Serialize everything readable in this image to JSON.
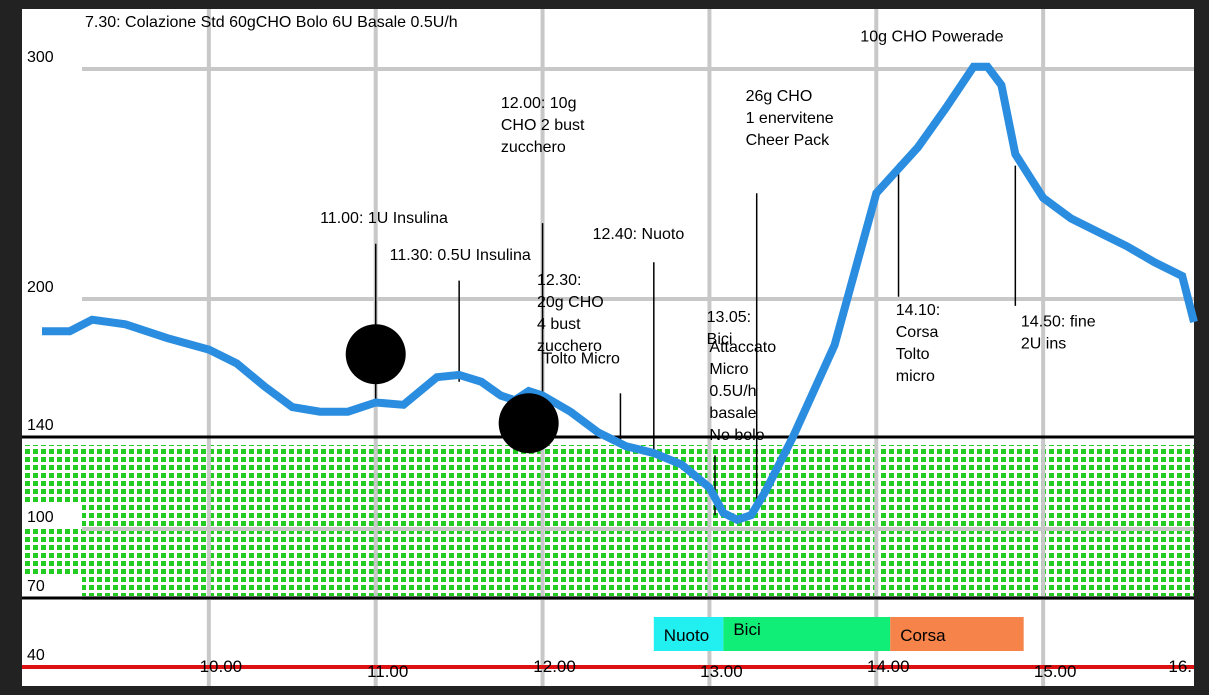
{
  "chart_data": {
    "type": "line",
    "title": "7.30: Colazione Std 60gCHO Bolo 6U Basale 0.5U/h",
    "xlabel": "",
    "ylabel": "",
    "xlim": [
      "09:00",
      "16:00"
    ],
    "ylim": [
      30,
      320
    ],
    "x_ticks": [
      {
        "label": "10.00",
        "time": "10:00"
      },
      {
        "label": "11.00",
        "time": "11:00"
      },
      {
        "label": "12.00",
        "time": "12:00"
      },
      {
        "label": "13.00",
        "time": "13:00"
      },
      {
        "label": "14.00",
        "time": "14:00"
      },
      {
        "label": "15.00",
        "time": "15:00"
      },
      {
        "label": "16.",
        "time": "16:00"
      }
    ],
    "y_ticks": [
      {
        "label": "300",
        "value": 300
      },
      {
        "label": "200",
        "value": 200
      },
      {
        "label": "140",
        "value": 140
      },
      {
        "label": "100",
        "value": 100
      },
      {
        "label": "70",
        "value": 70
      },
      {
        "label": "40",
        "value": 40
      }
    ],
    "grid": true,
    "target_range": {
      "low": 70,
      "high": 140,
      "color": "#22cc22"
    },
    "reference_lines": [
      {
        "value": 140,
        "color": "#000000"
      },
      {
        "value": 70,
        "color": "#000000"
      },
      {
        "value": 40,
        "color": "#dd1111"
      }
    ],
    "series": [
      {
        "color": "#2a8de0",
        "points": [
          {
            "x": "09:00",
            "y": 186
          },
          {
            "x": "09:10",
            "y": 186
          },
          {
            "x": "09:18",
            "y": 191
          },
          {
            "x": "09:30",
            "y": 189
          },
          {
            "x": "09:45",
            "y": 183
          },
          {
            "x": "10:00",
            "y": 178
          },
          {
            "x": "10:10",
            "y": 172
          },
          {
            "x": "10:20",
            "y": 162
          },
          {
            "x": "10:30",
            "y": 153
          },
          {
            "x": "10:40",
            "y": 151
          },
          {
            "x": "10:50",
            "y": 151
          },
          {
            "x": "11:00",
            "y": 155
          },
          {
            "x": "11:10",
            "y": 154
          },
          {
            "x": "11:15",
            "y": 159
          },
          {
            "x": "11:22",
            "y": 166
          },
          {
            "x": "11:30",
            "y": 167
          },
          {
            "x": "11:38",
            "y": 164
          },
          {
            "x": "11:45",
            "y": 158
          },
          {
            "x": "11:50",
            "y": 156
          },
          {
            "x": "11:55",
            "y": 160
          },
          {
            "x": "12:00",
            "y": 158
          },
          {
            "x": "12:10",
            "y": 151
          },
          {
            "x": "12:20",
            "y": 142
          },
          {
            "x": "12:30",
            "y": 136
          },
          {
            "x": "12:40",
            "y": 133
          },
          {
            "x": "12:50",
            "y": 128
          },
          {
            "x": "13:00",
            "y": 118
          },
          {
            "x": "13:05",
            "y": 107
          },
          {
            "x": "13:10",
            "y": 104
          },
          {
            "x": "13:15",
            "y": 106
          },
          {
            "x": "13:20",
            "y": 116
          },
          {
            "x": "13:30",
            "y": 140
          },
          {
            "x": "13:45",
            "y": 180
          },
          {
            "x": "14:00",
            "y": 246
          },
          {
            "x": "14:15",
            "y": 266
          },
          {
            "x": "14:25",
            "y": 283
          },
          {
            "x": "14:35",
            "y": 301
          },
          {
            "x": "14:40",
            "y": 301
          },
          {
            "x": "14:45",
            "y": 293
          },
          {
            "x": "14:50",
            "y": 263
          },
          {
            "x": "15:00",
            "y": 244
          },
          {
            "x": "15:10",
            "y": 235
          },
          {
            "x": "15:20",
            "y": 229
          },
          {
            "x": "15:30",
            "y": 223
          },
          {
            "x": "15:40",
            "y": 216
          },
          {
            "x": "15:50",
            "y": 210
          },
          {
            "x": "16:00",
            "y": 190
          }
        ]
      }
    ],
    "markers": [
      {
        "name": "dose-marker-1",
        "x": "11:00",
        "y": 176
      },
      {
        "name": "dose-marker-2",
        "x": "11:55",
        "y": 146
      }
    ],
    "annotations": [
      {
        "lines": [
          "10g CHO Powerade"
        ],
        "x": "14:20",
        "y": 312,
        "anchor": "middle",
        "stem": false
      },
      {
        "lines": [
          "11.00: 1U Insulina"
        ],
        "x": "10:40",
        "y": 233,
        "stem": true,
        "stem_x": "11:00",
        "stem_top": 224,
        "stem_bottom": 156
      },
      {
        "lines": [
          "11.30: 0.5U Insulina"
        ],
        "x": "11:05",
        "y": 217,
        "stem": true,
        "stem_x": "11:30",
        "stem_top": 208,
        "stem_bottom": 164
      },
      {
        "lines": [
          "12.00: 10g",
          "CHO 2 bust",
          "zucchero"
        ],
        "x": "11:45",
        "y": 283,
        "stem": true,
        "stem_x": "12:00",
        "stem_top": 233,
        "stem_bottom": 156
      },
      {
        "lines": [
          "12.30:",
          "20g CHO",
          "4 bust",
          "zucchero"
        ],
        "x": "11:58",
        "y": 206,
        "stem": false
      },
      {
        "lines": [
          "Tolto Micro"
        ],
        "x": "12:00",
        "y": 172,
        "stem": true,
        "stem_x": "12:28",
        "stem_top": 159,
        "stem_bottom": 137
      },
      {
        "lines": [
          "12.40: Nuoto"
        ],
        "x": "12:18",
        "y": 226,
        "stem": true,
        "stem_x": "12:40",
        "stem_top": 216,
        "stem_bottom": 134
      },
      {
        "lines": [
          "13.05:",
          "Bici"
        ],
        "x": "12:59",
        "y": 190,
        "stem": false
      },
      {
        "lines": [
          "Attaccato",
          "Micro",
          "0.5U/h",
          "basale",
          "No bolo"
        ],
        "x": "13:00",
        "y": 177,
        "stem": true,
        "stem_x": "13:02",
        "stem_top": 132,
        "stem_bottom": 106
      },
      {
        "lines": [
          "26g CHO",
          "1 enervitene",
          "Cheer Pack"
        ],
        "x": "13:13",
        "y": 286,
        "stem": true,
        "stem_x": "13:17",
        "stem_top": 246,
        "stem_bottom": 110
      },
      {
        "lines": [
          "14.10:",
          "Corsa",
          "Tolto",
          "micro"
        ],
        "x": "14:07",
        "y": 193,
        "stem": true,
        "stem_x": "14:08",
        "stem_top": 259,
        "stem_bottom": 201
      },
      {
        "lines": [
          "14.50: fine",
          "2U ins"
        ],
        "x": "14:52",
        "y": 188,
        "stem": true,
        "stem_x": "14:50",
        "stem_top": 258,
        "stem_bottom": 197
      }
    ],
    "activity_bands": [
      {
        "label": "Nuoto",
        "start": "12:40",
        "end": "13:05",
        "color": "#22f0f0"
      },
      {
        "label": "Bici",
        "start": "13:05",
        "end": "14:05",
        "color": "#11ee77"
      },
      {
        "label": "Corsa",
        "start": "14:05",
        "end": "14:53",
        "color": "#f5834a"
      }
    ]
  }
}
